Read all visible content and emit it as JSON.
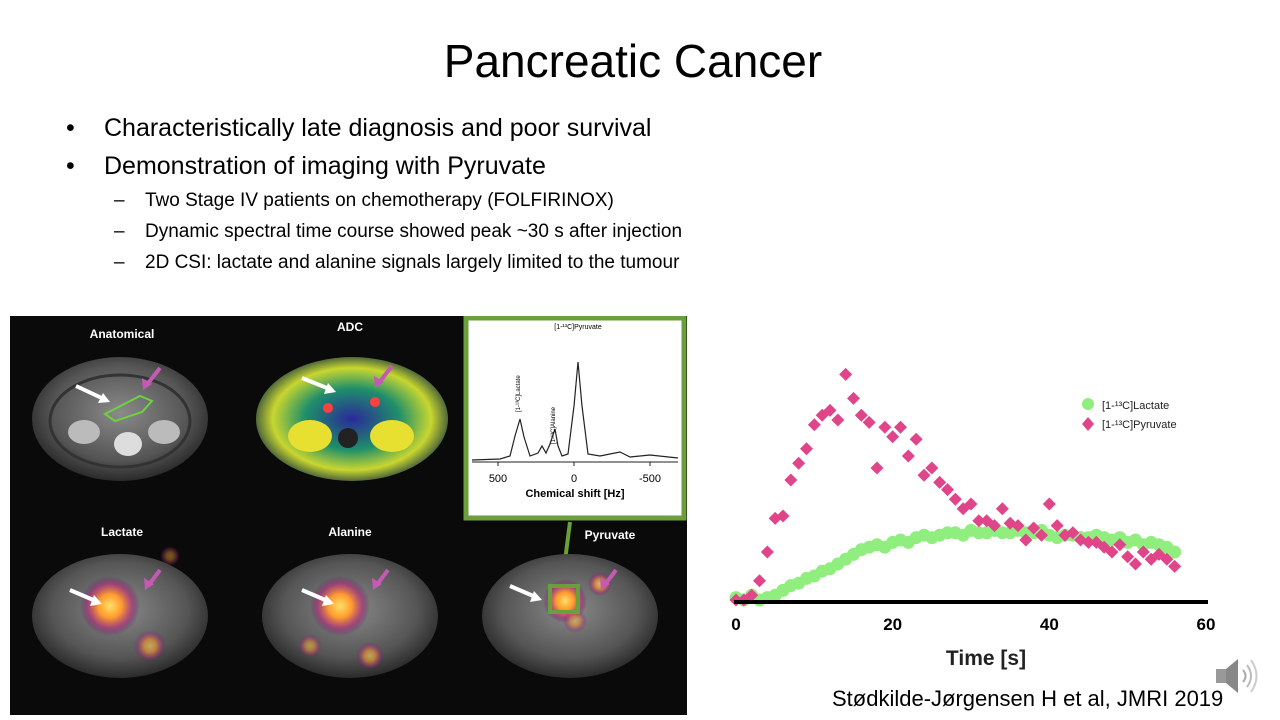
{
  "slide": {
    "title": "Pancreatic Cancer",
    "bullets": [
      {
        "text": "Characteristically late diagnosis and poor survival"
      },
      {
        "text": "Demonstration of imaging with Pyruvate",
        "sub": [
          "Two Stage IV patients on chemotherapy (FOLFIRINOX)",
          "Dynamic spectral time course showed peak ~30 s after injection",
          "2D CSI: lactate and alanine signals largely limited to the tumour"
        ]
      }
    ],
    "citation": "Stødkilde-Jørgensen H et al, JMRI 2019"
  },
  "figure": {
    "panels": [
      "Anatomical",
      "ADC",
      "Lactate",
      "Alanine",
      "Pyruvate"
    ],
    "spectrum": {
      "peak_main": "[1-¹³C]Pyruvate",
      "peak_lactate": "[1-¹³C]Lactate",
      "peak_alanine": "[1-¹³C]Alanine",
      "xlabel": "Chemical shift [Hz]",
      "ticks": [
        "500",
        "0",
        "-500"
      ]
    }
  },
  "chart_data": {
    "type": "scatter",
    "title": "",
    "xlabel": "Time [s]",
    "ylabel": "",
    "xlim": [
      0,
      60
    ],
    "ylim": [
      0,
      100
    ],
    "xticks": [
      "0",
      "20",
      "40",
      "60"
    ],
    "legend_position": "top-right",
    "series": [
      {
        "name": "[1-¹³C]Lactate",
        "color": "#90ee7e",
        "marker": "circle",
        "x": [
          0,
          1,
          2,
          3,
          4,
          5,
          6,
          7,
          8,
          9,
          10,
          11,
          12,
          13,
          14,
          15,
          16,
          17,
          18,
          19,
          20,
          21,
          22,
          23,
          24,
          25,
          26,
          27,
          28,
          29,
          30,
          31,
          32,
          33,
          34,
          35,
          36,
          37,
          38,
          39,
          40,
          41,
          42,
          43,
          44,
          45,
          46,
          47,
          48,
          49,
          50,
          51,
          52,
          53,
          54,
          55,
          56
        ],
        "y": [
          1,
          0,
          2,
          0,
          1,
          2,
          4,
          6,
          7,
          9,
          10,
          12,
          13,
          15,
          17,
          19,
          21,
          22,
          23,
          22,
          24,
          25,
          24,
          26,
          27,
          26,
          27,
          28,
          28,
          27,
          29,
          28,
          28,
          29,
          28,
          28,
          29,
          28,
          28,
          29,
          27,
          26,
          27,
          27,
          26,
          26,
          27,
          26,
          25,
          26,
          24,
          25,
          23,
          24,
          23,
          22,
          20
        ]
      },
      {
        "name": "[1-¹³C]Pyruvate",
        "color": "#e0458a",
        "marker": "diamond",
        "x": [
          0,
          1,
          2,
          3,
          4,
          5,
          6,
          7,
          8,
          9,
          10,
          11,
          12,
          13,
          14,
          15,
          16,
          17,
          18,
          19,
          20,
          21,
          22,
          23,
          24,
          25,
          26,
          27,
          28,
          29,
          30,
          31,
          32,
          33,
          34,
          35,
          36,
          37,
          38,
          39,
          40,
          41,
          42,
          43,
          44,
          45,
          46,
          47,
          48,
          49,
          50,
          51,
          52,
          53,
          54,
          55,
          56
        ],
        "y": [
          0,
          0,
          2,
          8,
          20,
          34,
          35,
          50,
          57,
          63,
          73,
          77,
          79,
          75,
          94,
          84,
          77,
          74,
          55,
          72,
          68,
          72,
          60,
          67,
          52,
          55,
          49,
          46,
          42,
          38,
          40,
          33,
          33,
          31,
          38,
          32,
          31,
          25,
          30,
          27,
          40,
          31,
          27,
          28,
          25,
          24,
          24,
          22,
          20,
          23,
          18,
          15,
          20,
          17,
          19,
          17,
          14
        ]
      }
    ]
  }
}
